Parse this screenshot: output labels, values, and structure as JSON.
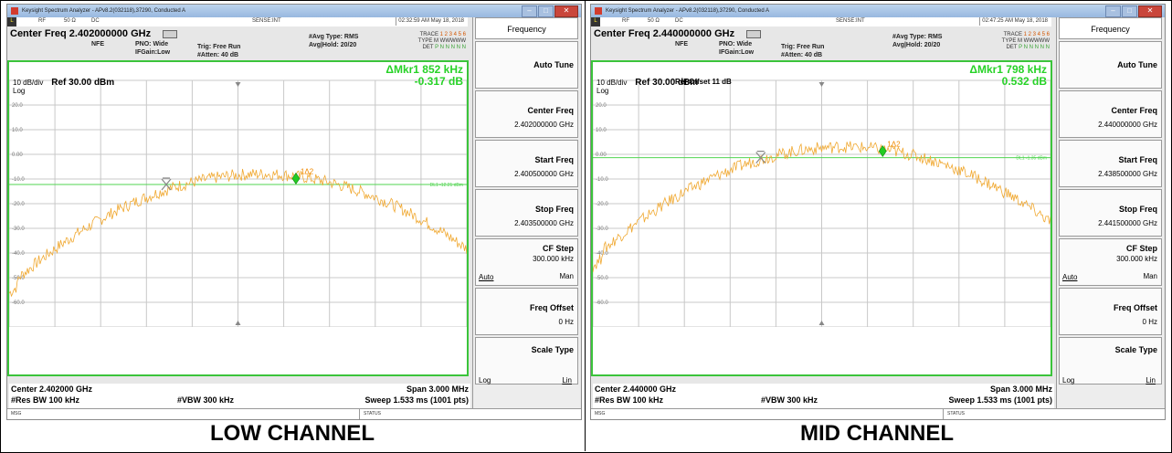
{
  "panels": [
    {
      "window_title": "Keysight Spectrum Analyzer - APv8.2(032118),37290, Conducted A",
      "toolbar": {
        "mode": "L",
        "input": "RF",
        "impedance": "50 Ω",
        "coupling": "DC",
        "sense": "SENSE:INT",
        "timestamp": "02:32:59 AM May 18, 2018"
      },
      "center_freq_header": "Center Freq 2.402000000 GHz",
      "nfe": "NFE",
      "pno": "PNO: Wide",
      "ifgain": "IFGain:Low",
      "trig": "Trig: Free Run",
      "atten": "#Atten: 40 dB",
      "avg_type": "#Avg Type: RMS",
      "avg_hold": "Avg|Hold: 20/20",
      "trace_label": "TRACE",
      "type_label": "TYPE",
      "det_label": "DET",
      "trace_nums": "1 2 3 4 5 6",
      "type_vals": "M WWWWW",
      "det_vals": "P N N N N N",
      "ref_offset": "",
      "scale": "10 dB/div",
      "scale_type": "Log",
      "ref_level": "Ref 30.00 dBm",
      "marker_delta": "ΔMkr1 852 kHz",
      "marker_value": "-0.317 dB",
      "marker_tag": "1Δ2",
      "display_line": "DL1 -12.21 dBm",
      "y_labels": [
        "20.0",
        "10.0",
        "0.00",
        "-10.0",
        "-20.0",
        "-30.0",
        "-40.0",
        "-50.0",
        "-60.0"
      ],
      "center_footer": "Center 2.402000 GHz",
      "res_bw": "#Res BW 100 kHz",
      "vbw": "#VBW 300 kHz",
      "span": "Span 3.000 MHz",
      "sweep": "Sweep  1.533 ms (1001 pts)",
      "softkeys": {
        "title": "Frequency",
        "auto_tune": "Auto Tune",
        "center_freq": "Center Freq",
        "center_freq_val": "2.402000000 GHz",
        "start_freq": "Start Freq",
        "start_freq_val": "2.400500000 GHz",
        "stop_freq": "Stop Freq",
        "stop_freq_val": "2.403500000 GHz",
        "cf_step": "CF Step",
        "cf_step_val": "300.000 kHz",
        "auto": "Auto",
        "man": "Man",
        "freq_offset": "Freq Offset",
        "freq_offset_val": "0 Hz",
        "scale_type": "Scale Type",
        "log": "Log",
        "lin": "Lin"
      },
      "status_msg": "MSG",
      "status": "STATUS",
      "caption": "LOW CHANNEL",
      "trace_color": "#f0a830",
      "display_line_value_db": -12.21,
      "marker1_x_mhz": -0.47,
      "marker2_x_mhz": 0.38,
      "marker2_y_db": -9.8
    },
    {
      "window_title": "Keysight Spectrum Analyzer - APv8.2(032118),37290, Conducted A",
      "toolbar": {
        "mode": "L",
        "input": "RF",
        "impedance": "50 Ω",
        "coupling": "DC",
        "sense": "SENSE:INT",
        "timestamp": "02:47:25 AM May 18, 2018"
      },
      "center_freq_header": "Center Freq 2.440000000 GHz",
      "nfe": "NFE",
      "pno": "PNO: Wide",
      "ifgain": "IFGain:Low",
      "trig": "Trig: Free Run",
      "atten": "#Atten: 40 dB",
      "avg_type": "#Avg Type: RMS",
      "avg_hold": "Avg|Hold: 20/20",
      "trace_label": "TRACE",
      "type_label": "TYPE",
      "det_label": "DET",
      "trace_nums": "1 2 3 4 5 6",
      "type_vals": "M WWWWW",
      "det_vals": "P N N N N N",
      "ref_offset": "Ref Offset 11 dB",
      "scale": "10 dB/div",
      "scale_type": "Log",
      "ref_level": "Ref 30.00 dBm",
      "marker_delta": "ΔMkr1 798 kHz",
      "marker_value": "0.532 dB",
      "marker_tag": "1Δ2",
      "display_line": "DL1 -1.35 dBm",
      "y_labels": [
        "20.0",
        "10.0",
        "0.00",
        "-10.0",
        "-20.0",
        "-30.0",
        "-40.0",
        "-50.0",
        "-60.0"
      ],
      "center_footer": "Center 2.440000 GHz",
      "res_bw": "#Res BW 100 kHz",
      "vbw": "#VBW 300 kHz",
      "span": "Span 3.000 MHz",
      "sweep": "Sweep  1.533 ms (1001 pts)",
      "softkeys": {
        "title": "Frequency",
        "auto_tune": "Auto Tune",
        "center_freq": "Center Freq",
        "center_freq_val": "2.440000000 GHz",
        "start_freq": "Start Freq",
        "start_freq_val": "2.438500000 GHz",
        "stop_freq": "Stop Freq",
        "stop_freq_val": "2.441500000 GHz",
        "cf_step": "CF Step",
        "cf_step_val": "300.000 kHz",
        "auto": "Auto",
        "man": "Man",
        "freq_offset": "Freq Offset",
        "freq_offset_val": "0 Hz",
        "scale_type": "Scale Type",
        "log": "Log",
        "lin": "Lin"
      },
      "status_msg": "MSG",
      "status": "STATUS",
      "caption": "MID CHANNEL",
      "trace_color": "#f0a830",
      "display_line_value_db": -1.35,
      "marker1_x_mhz": -0.4,
      "marker2_x_mhz": 0.4,
      "marker2_y_db": 1.3
    }
  ]
}
